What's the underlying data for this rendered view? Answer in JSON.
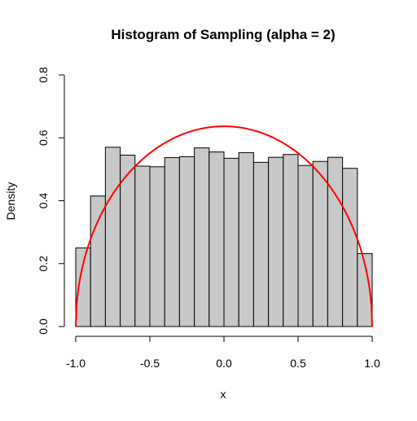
{
  "chart_data": {
    "type": "bar",
    "title": "Histogram of Sampling (alpha = 2)",
    "xlabel": "x",
    "ylabel": "Density",
    "xlim": [
      -1.0,
      1.0
    ],
    "ylim": [
      0,
      0.8
    ],
    "x_ticks": [
      -1.0,
      -0.5,
      0.0,
      0.5,
      1.0
    ],
    "x_tick_labels": [
      "-1.0",
      "-0.5",
      "0.0",
      "0.5",
      "1.0"
    ],
    "y_ticks": [
      0.0,
      0.2,
      0.4,
      0.6,
      0.8
    ],
    "y_tick_labels": [
      "0.0",
      "0.2",
      "0.4",
      "0.6",
      "0.8"
    ],
    "grid": false,
    "histogram": {
      "bin_edges": [
        -1.0,
        -0.9,
        -0.8,
        -0.7,
        -0.6,
        -0.5,
        -0.4,
        -0.3,
        -0.2,
        -0.1,
        0.0,
        0.1,
        0.2,
        0.3,
        0.4,
        0.5,
        0.6,
        0.7,
        0.8,
        0.9,
        1.0
      ],
      "densities": [
        0.25,
        0.415,
        0.57,
        0.545,
        0.51,
        0.508,
        0.537,
        0.54,
        0.568,
        0.555,
        0.535,
        0.553,
        0.522,
        0.538,
        0.547,
        0.512,
        0.525,
        0.538,
        0.503,
        0.232
      ],
      "fill_color": "#c8c8c8",
      "edge_color": "#000000"
    },
    "curve": {
      "type": "line",
      "function": "semicircle",
      "peak_value": 0.6366,
      "color": "#ff0000"
    }
  }
}
